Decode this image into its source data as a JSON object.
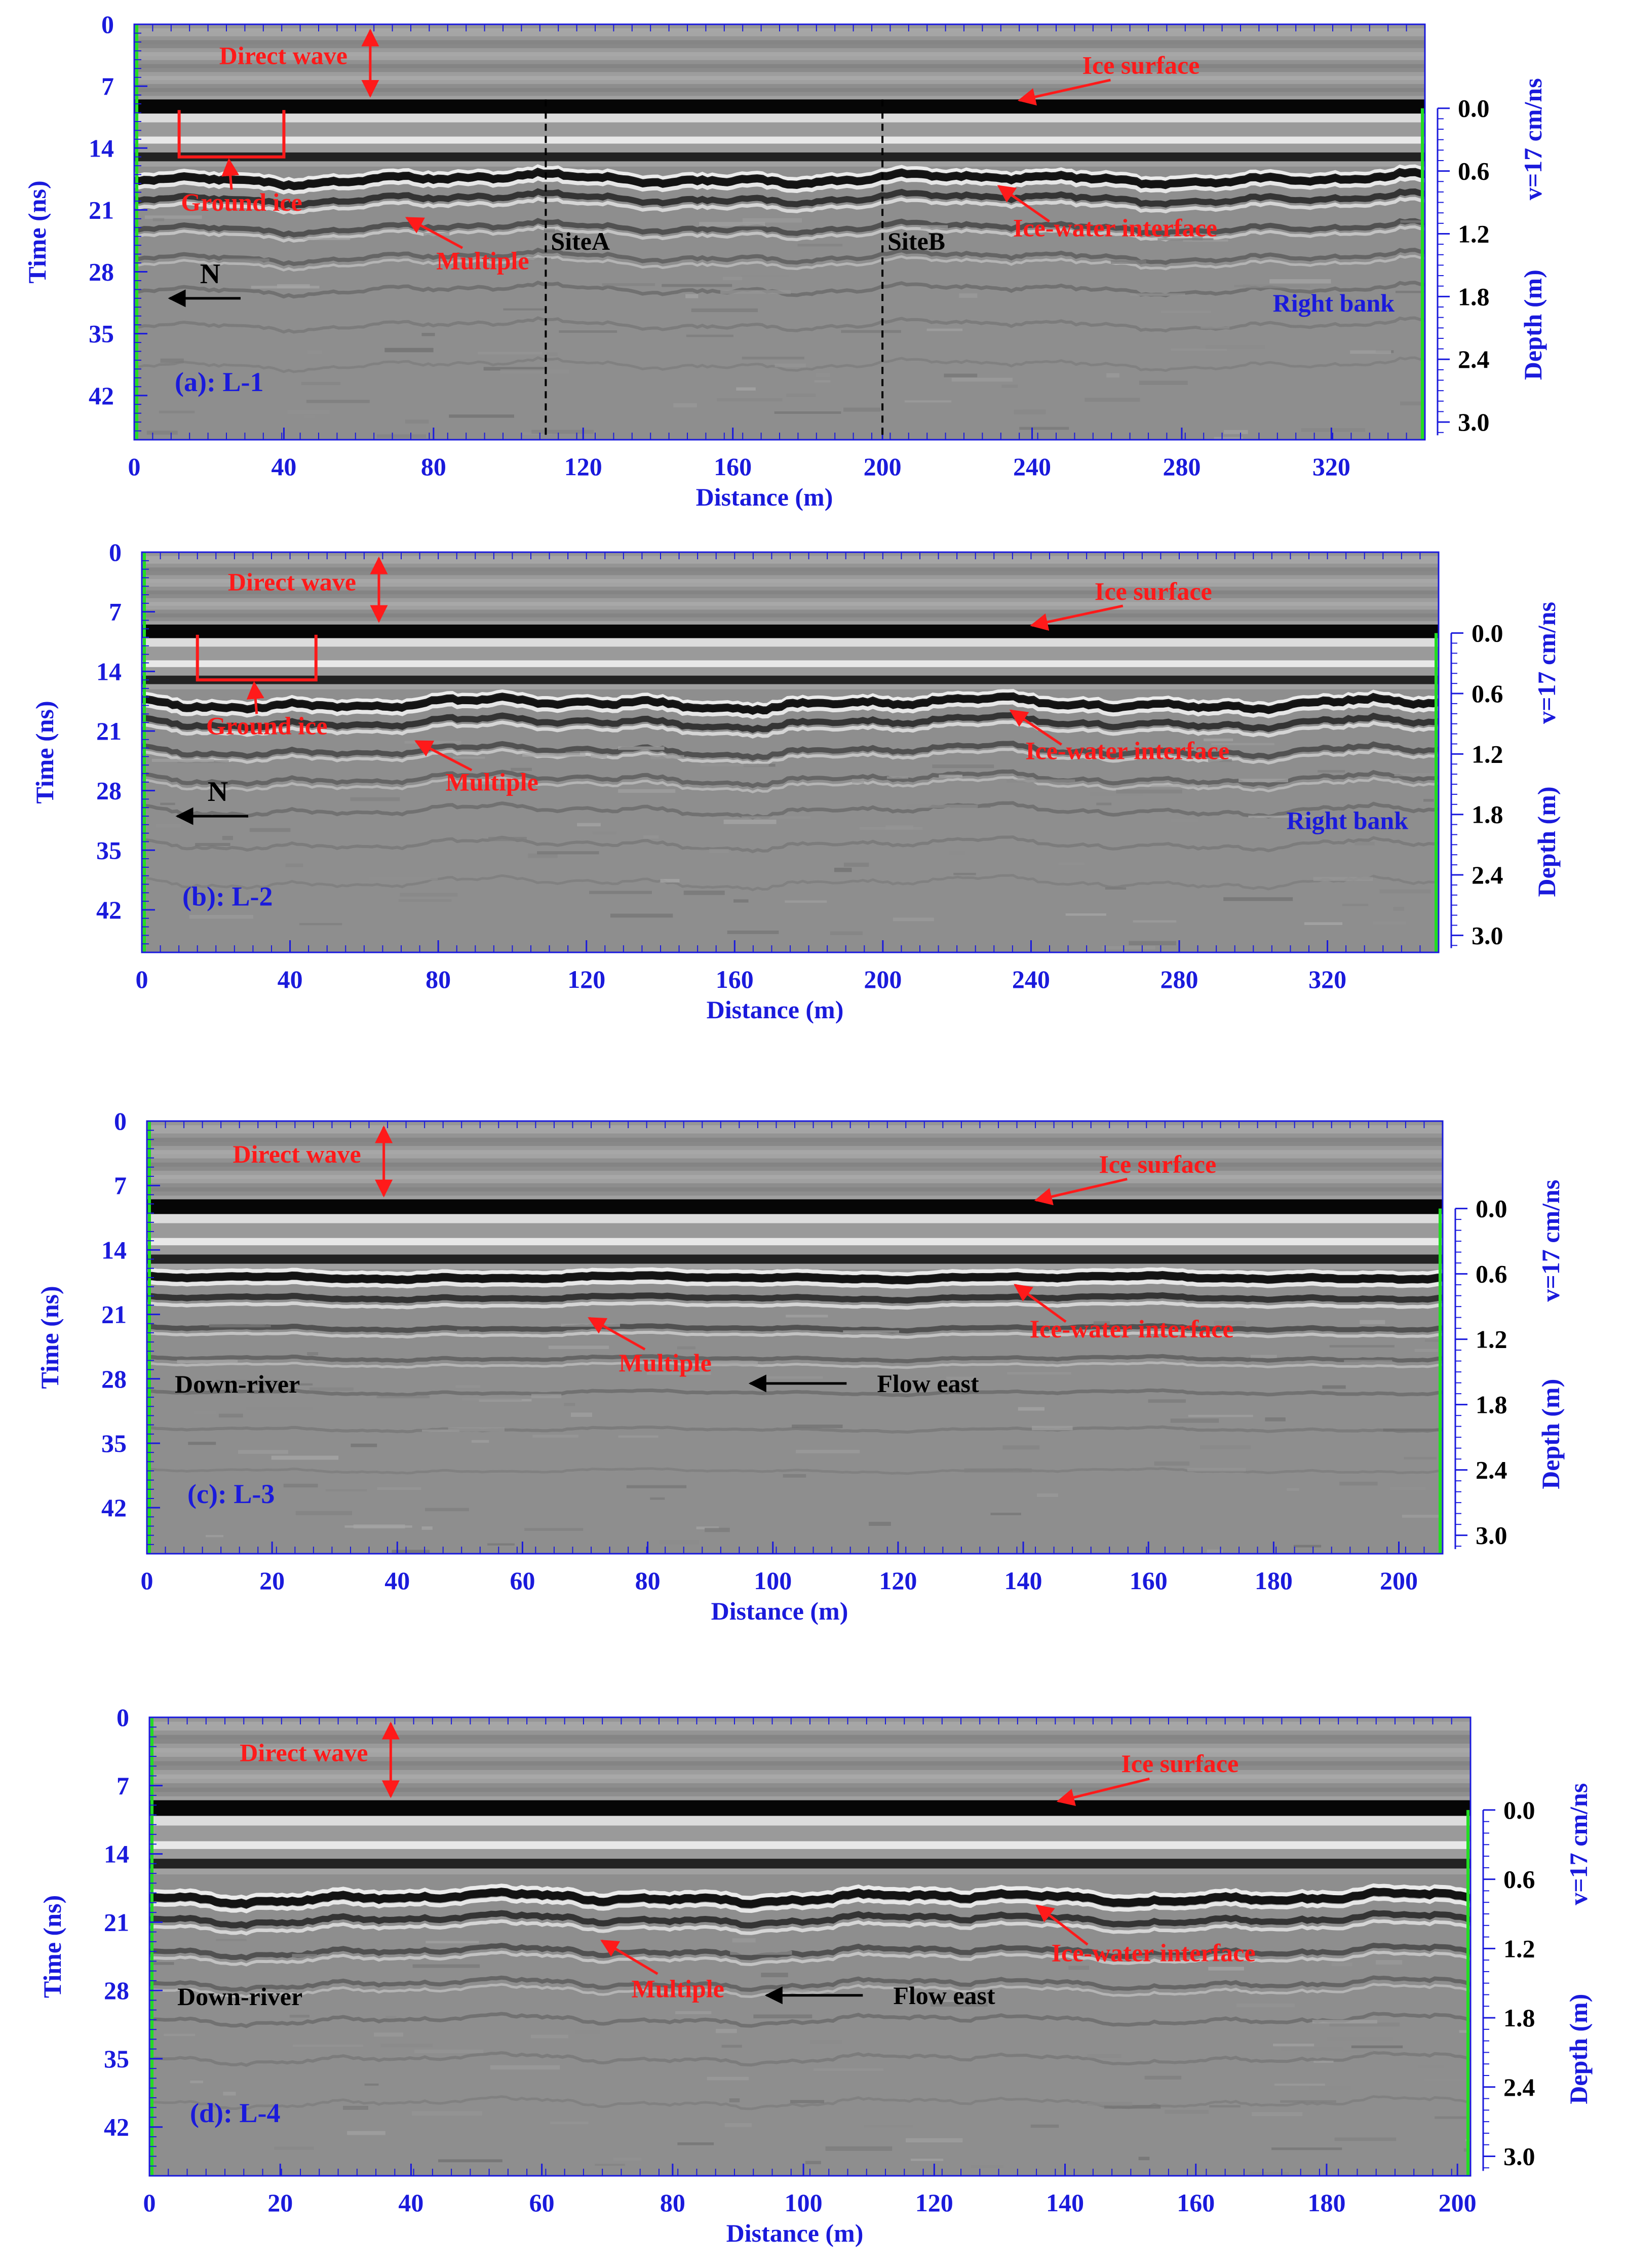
{
  "chart_data": [
    {
      "type": "radargram",
      "panel_label": "(a): L-1",
      "xlabel": "Distance (m)",
      "ylabel": "Time (ns)",
      "y2label": "Depth (m)",
      "velocity_label": "v=17 cm/ns",
      "xlim": [
        0,
        345
      ],
      "x_ticks": [
        0,
        40,
        80,
        120,
        160,
        200,
        240,
        280,
        320
      ],
      "ylim": [
        0,
        47
      ],
      "y_ticks": [
        0,
        7,
        14,
        21,
        28,
        35,
        42
      ],
      "depth_ticks": [
        "0.0",
        "0.6",
        "1.2",
        "1.8",
        "2.4",
        "3.0"
      ],
      "depth_start_time": 9.5,
      "depth_time_step": 7.1,
      "ice_surface_time": 9.5,
      "interface_base_time": 17.5,
      "interface_amplitude": 0.8,
      "seed": 11,
      "ground_ice": true,
      "ground_ice_range": [
        12,
        40
      ],
      "north_arrow": true,
      "north_label": "N",
      "site_lines": [
        {
          "x": 110,
          "label": "SiteA"
        },
        {
          "x": 200,
          "label": "SiteB"
        }
      ],
      "annotations": {
        "direct_wave": "Direct wave",
        "ice_surface": "Ice surface",
        "ground_ice": "Ground ice",
        "multiple": "Multiple",
        "ice_water_interface": "Ice-water interface",
        "side_label": "Right bank"
      }
    },
    {
      "type": "radargram",
      "panel_label": "(b): L-2",
      "xlabel": "Distance (m)",
      "ylabel": "Time (ns)",
      "y2label": "Depth (m)",
      "velocity_label": "v=17 cm/ns",
      "xlim": [
        0,
        350
      ],
      "x_ticks": [
        0,
        40,
        80,
        120,
        160,
        200,
        240,
        280,
        320
      ],
      "ylim": [
        0,
        47
      ],
      "y_ticks": [
        0,
        7,
        14,
        21,
        28,
        35,
        42
      ],
      "depth_ticks": [
        "0.0",
        "0.6",
        "1.2",
        "1.8",
        "2.4",
        "3.0"
      ],
      "depth_start_time": 9.5,
      "depth_time_step": 7.1,
      "ice_surface_time": 9.5,
      "interface_base_time": 17.8,
      "interface_amplitude": 0.9,
      "seed": 23,
      "ground_ice": true,
      "ground_ice_range": [
        15,
        47
      ],
      "north_arrow": true,
      "north_label": "N",
      "site_lines": [],
      "annotations": {
        "direct_wave": "Direct wave",
        "ice_surface": "Ice surface",
        "ground_ice": "Ground ice",
        "multiple": "Multiple",
        "ice_water_interface": "Ice-water interface",
        "side_label": "Right bank"
      }
    },
    {
      "type": "radargram",
      "panel_label": "(c): L-3",
      "xlabel": "Distance (m)",
      "ylabel": "Time (ns)",
      "y2label": "Depth (m)",
      "velocity_label": "v=17 cm/ns",
      "xlim": [
        0,
        207
      ],
      "x_ticks": [
        0,
        20,
        40,
        60,
        80,
        100,
        120,
        140,
        160,
        180,
        200
      ],
      "ylim": [
        0,
        47
      ],
      "y_ticks": [
        0,
        7,
        14,
        21,
        28,
        35,
        42
      ],
      "depth_ticks": [
        "0.0",
        "0.6",
        "1.2",
        "1.8",
        "2.4",
        "3.0"
      ],
      "depth_start_time": 9.5,
      "depth_time_step": 7.1,
      "ice_surface_time": 9.5,
      "interface_base_time": 17.0,
      "interface_amplitude": 0.3,
      "seed": 37,
      "ground_ice": false,
      "north_arrow": false,
      "site_lines": [],
      "flow_label": "Flow east",
      "annotations": {
        "direct_wave": "Direct wave",
        "ice_surface": "Ice surface",
        "multiple": "Multiple",
        "ice_water_interface": "Ice-water interface",
        "side_label": "Down-river"
      }
    },
    {
      "type": "radargram",
      "panel_label": "(d): L-4",
      "xlabel": "Distance (m)",
      "ylabel": "Time (ns)",
      "y2label": "Depth (m)",
      "velocity_label": "v=17 cm/ns",
      "xlim": [
        0,
        202
      ],
      "x_ticks": [
        0,
        20,
        40,
        60,
        80,
        100,
        120,
        140,
        160,
        180,
        200
      ],
      "ylim": [
        0,
        47
      ],
      "y_ticks": [
        0,
        7,
        14,
        21,
        28,
        35,
        42
      ],
      "depth_ticks": [
        "0.0",
        "0.6",
        "1.2",
        "1.8",
        "2.4",
        "3.0"
      ],
      "depth_start_time": 9.5,
      "depth_time_step": 7.1,
      "ice_surface_time": 9.5,
      "interface_base_time": 18.5,
      "interface_amplitude": 0.7,
      "seed": 53,
      "ground_ice": false,
      "north_arrow": false,
      "site_lines": [],
      "flow_label": "Flow east",
      "annotations": {
        "direct_wave": "Direct wave",
        "ice_surface": "Ice surface",
        "multiple": "Multiple",
        "ice_water_interface": "Ice-water interface",
        "side_label": "Down-river"
      }
    }
  ],
  "colors": {
    "axis": "#1a1adc",
    "annotation": "#ff1a1a",
    "edge_marker": "#22dd22",
    "text_dark": "#000000"
  }
}
